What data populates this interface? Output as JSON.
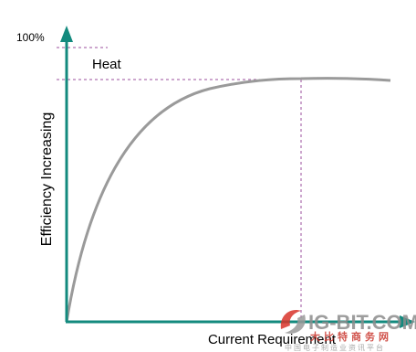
{
  "y_axis_top_label": "100%",
  "annotation": "Heat",
  "y_axis_label": "Efficiency Increasing",
  "x_axis_label": "Current Requirement",
  "watermark": {
    "site": "IG-BIT.COM",
    "brand": "大比特商务网",
    "tagline": "中国电子制造业资讯平台"
  }
}
